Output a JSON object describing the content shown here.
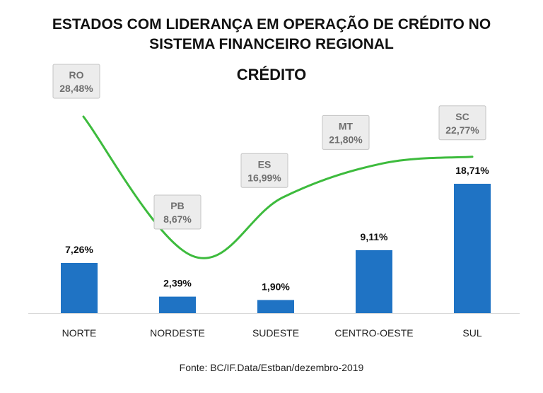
{
  "title_line1": "ESTADOS COM LIDERANÇA EM OPERAÇÃO DE CRÉDITO NO",
  "title_line2": "SISTEMA FINANCEIRO  REGIONAL",
  "subtitle": "CRÉDITO",
  "source": "Fonte: BC/IF.Data/Estban/dezembro-2019",
  "colors": {
    "bar": "#1f73c4",
    "line": "#3dbb3d",
    "callout_bg": "#ececec",
    "callout_border": "#c4c4c4",
    "callout_text": "#6f6f6f"
  },
  "chart_data": {
    "type": "bar",
    "categories": [
      "NORTE",
      "NORDESTE",
      "SUDESTE",
      "CENTRO-OESTE",
      "SUL"
    ],
    "values": [
      7.26,
      2.39,
      1.9,
      9.11,
      18.71
    ],
    "value_labels": [
      "7,26%",
      "2,39%",
      "1,90%",
      "9,11%",
      "18,71%"
    ],
    "ylim": [
      0,
      20
    ],
    "grid": false,
    "xlabel": "",
    "ylabel": "",
    "overlay_line": {
      "states": [
        "RO",
        "PB",
        "ES",
        "MT",
        "SC"
      ],
      "values": [
        28.48,
        8.67,
        16.99,
        21.8,
        22.77
      ],
      "labels": [
        "28,48%",
        "8,67%",
        "16,99%",
        "21,80%",
        "22,77%"
      ]
    }
  }
}
